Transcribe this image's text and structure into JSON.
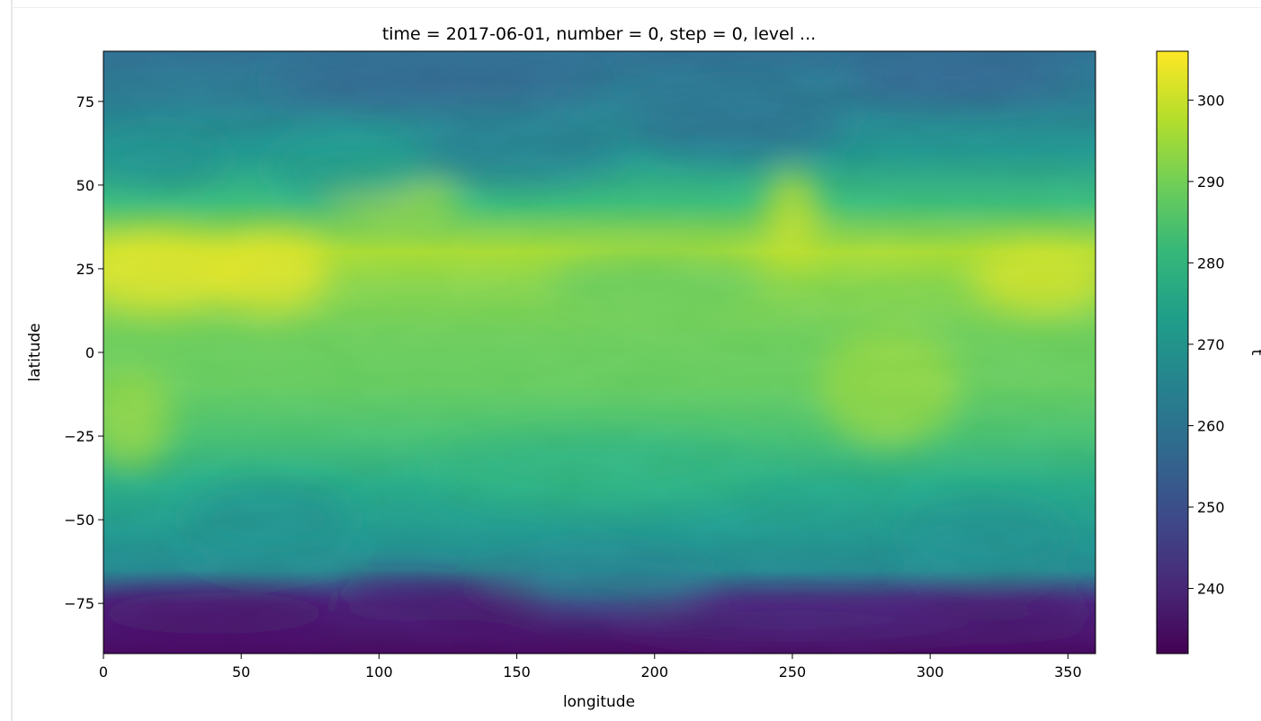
{
  "chart_data": {
    "type": "heatmap",
    "title": "time = 2017-06-01, number = 0, step = 0, level ...",
    "xlabel": "longitude",
    "ylabel": "latitude",
    "colorbar_label": "t",
    "xlim": [
      0,
      360
    ],
    "ylim": [
      -90,
      90
    ],
    "x_ticks": [
      0,
      50,
      100,
      150,
      200,
      250,
      300,
      350
    ],
    "x_tick_labels": [
      "0",
      "50",
      "100",
      "150",
      "200",
      "250",
      "300",
      "350"
    ],
    "y_ticks": [
      75,
      50,
      25,
      0,
      -25,
      -50,
      -75
    ],
    "y_tick_labels": [
      "75",
      "50",
      "25",
      "0",
      "−25",
      "−50",
      "−75"
    ],
    "colorbar_range": [
      232,
      306
    ],
    "colorbar_ticks": [
      300,
      290,
      280,
      270,
      260,
      250,
      240
    ],
    "colorbar_tick_labels": [
      "300",
      "290",
      "280",
      "270",
      "260",
      "250",
      "240"
    ],
    "colormap": "viridis",
    "colormap_stops": [
      "#440154",
      "#482878",
      "#3e4989",
      "#31688e",
      "#26828e",
      "#1f9e89",
      "#35b779",
      "#6ece58",
      "#b5de2b",
      "#fde725"
    ],
    "grid": false,
    "field_notes": "temperature field: warm (~300) subtropical belt 10–35N, cool (~240) over Antarctica south of 70S, cool (~255–262) high northern latitudes"
  }
}
